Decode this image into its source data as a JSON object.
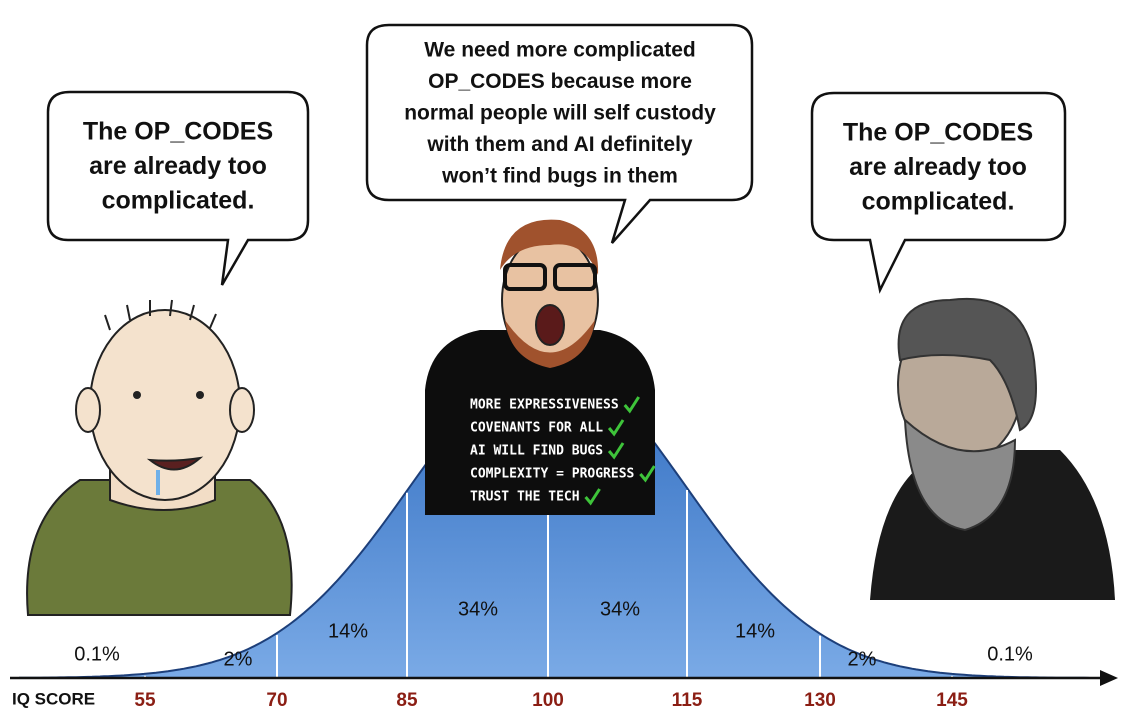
{
  "speech_bubbles": [
    {
      "lines": [
        "The OP_CODES",
        "are already too",
        "complicated."
      ]
    },
    {
      "lines": [
        "We need more complicated",
        "OP_CODES because more",
        "normal people will self custody",
        "with them and AI definitely",
        "won’t find bugs in them"
      ]
    },
    {
      "lines": [
        "The OP_CODES",
        "are already too",
        "complicated."
      ]
    }
  ],
  "hoodie_list": [
    "MORE EXPRESSIVENESS",
    "COVENANTS FOR ALL",
    "AI WILL FIND BUGS",
    "COMPLEXITY = PROGRESS",
    "TRUST THE TECH"
  ],
  "bell_curve": {
    "segment_labels": [
      "0.1%",
      "2%",
      "14%",
      "34%",
      "34%",
      "14%",
      "2%",
      "0.1%"
    ],
    "axis_label": "IQ SCORE",
    "ticks": [
      "55",
      "70",
      "85",
      "100",
      "115",
      "130",
      "145"
    ]
  }
}
